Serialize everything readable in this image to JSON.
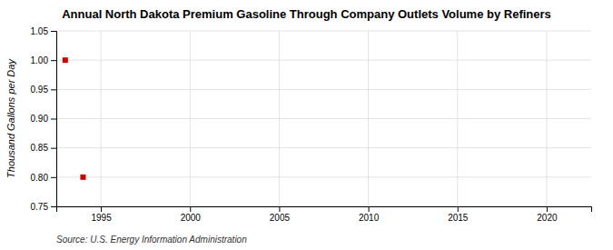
{
  "chart_data": {
    "type": "scatter",
    "title": "Annual North Dakota Premium Gasoline Through Company Outlets Volume by Refiners",
    "ylabel": "Thousand Gallons per Day",
    "annotations": [
      "Source: U.S. Energy Information Administration"
    ],
    "x": [
      1993,
      1994
    ],
    "values": [
      1.0,
      0.8
    ],
    "color": "#cc0000",
    "marker": "square",
    "xlim": [
      1992.5,
      2022.5
    ],
    "ylim": [
      0.75,
      1.05
    ],
    "xticks": [
      1995,
      2000,
      2005,
      2010,
      2015,
      2020
    ],
    "yticks": [
      0.75,
      {
        "value": 0.8,
        "label": "0.80"
      },
      {
        "value": 0.85,
        "label": "0.85"
      },
      {
        "value": 0.9,
        "label": "0.90"
      },
      0.95,
      {
        "value": 1.0,
        "label": "1.00"
      },
      1.05
    ],
    "grid": true
  }
}
